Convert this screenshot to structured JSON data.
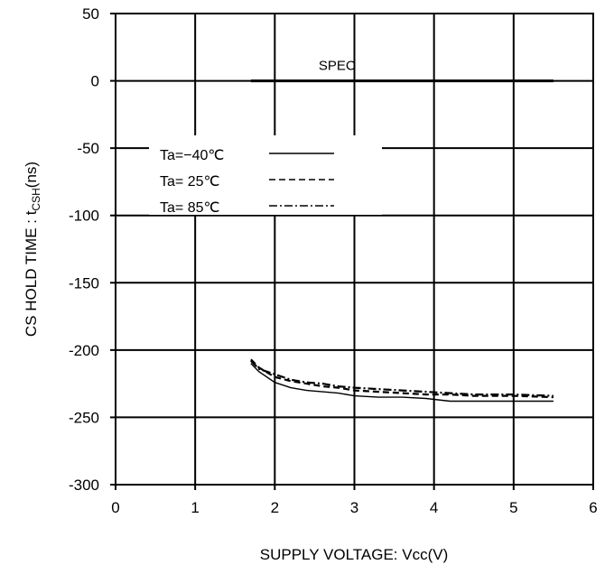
{
  "chart_data": {
    "type": "line",
    "xlabel": "SUPPLY VOLTAGE: Vcc(V)",
    "ylabel_main": "CS HOLD TIME : t",
    "ylabel_sub": "CSH",
    "ylabel_unit": "(ns)",
    "xlim": [
      0,
      6
    ],
    "ylim": [
      -300,
      50
    ],
    "xticks": [
      "0",
      "1",
      "2",
      "3",
      "4",
      "5",
      "6"
    ],
    "yticks": [
      "50",
      "0",
      "-50",
      "-100",
      "-150",
      "-200",
      "-250",
      "-300"
    ],
    "grid": true,
    "legend_position": "upper-left",
    "annotation": {
      "text": "SPEC",
      "x": 2.55,
      "y": 0
    },
    "spec_line": {
      "name": "SPEC",
      "x": [
        1.7,
        5.5
      ],
      "values": [
        0,
        0
      ]
    },
    "series": [
      {
        "name": "Ta=−40℃",
        "dash": "solid",
        "x": [
          1.7,
          1.8,
          2.0,
          2.2,
          2.4,
          2.6,
          2.8,
          3.0,
          3.3,
          3.6,
          3.9,
          4.2,
          4.5,
          5.0,
          5.5
        ],
        "values": [
          -210,
          -216,
          -224,
          -228,
          -230,
          -231,
          -232,
          -234,
          -235,
          -235,
          -236,
          -238,
          -238,
          -238,
          -238
        ]
      },
      {
        "name": "Ta= 25℃",
        "dash": "dashed",
        "x": [
          1.7,
          1.8,
          2.0,
          2.2,
          2.4,
          2.6,
          2.8,
          3.0,
          3.3,
          3.6,
          3.9,
          4.2,
          4.5,
          5.0,
          5.5
        ],
        "values": [
          -207,
          -213,
          -220,
          -223,
          -225,
          -227,
          -228,
          -230,
          -231,
          -232,
          -233,
          -233,
          -234,
          -234,
          -235
        ]
      },
      {
        "name": "Ta= 85℃",
        "dash": "dashdot",
        "x": [
          1.7,
          1.8,
          2.0,
          2.2,
          2.4,
          2.6,
          2.8,
          3.0,
          3.3,
          3.6,
          3.9,
          4.2,
          4.5,
          5.0,
          5.5
        ],
        "values": [
          -208,
          -214,
          -218,
          -222,
          -224,
          -225,
          -227,
          -228,
          -229,
          -230,
          -231,
          -232,
          -233,
          -233,
          -234
        ]
      }
    ]
  }
}
